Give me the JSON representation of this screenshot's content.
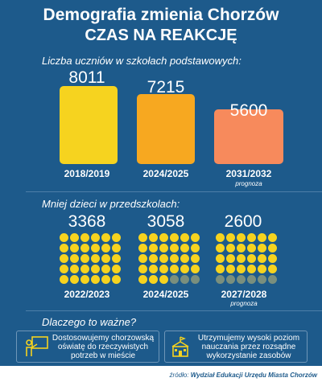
{
  "header": {
    "title": "Demografia zmienia Chorzów",
    "subtitle": "CZAS NA REAKCJĘ"
  },
  "sections": {
    "schools": "Liczba uczniów w szkołach podstawowych:",
    "preschools": "Mniej dzieci w przedszkolach:",
    "why": "Dlaczego to ważne?"
  },
  "chart_data": [
    {
      "type": "bar",
      "categories": [
        "2018/2019",
        "2024/2025",
        "2031/2032"
      ],
      "values": [
        8011,
        7215,
        5600
      ],
      "value_labels": [
        "8011",
        "7215",
        "5600"
      ],
      "notes": [
        "",
        "",
        "prognoza"
      ],
      "colors": [
        "#f6d31f",
        "#f7a820",
        "#f78a5c"
      ]
    },
    {
      "type": "bar",
      "categories": [
        "2022/2023",
        "2024/2025",
        "2027/2028"
      ],
      "values": [
        3368,
        3058,
        2600
      ],
      "value_labels": [
        "3368",
        "3058",
        "2600"
      ],
      "notes": [
        "",
        "",
        "prognoza"
      ],
      "icon_rows": [
        5,
        4.5,
        4
      ],
      "colors": {
        "face": "#f6d31f",
        "dim": "#7a8f7d"
      }
    }
  ],
  "why": {
    "item1": [
      "Dostosowujemy chorzowską",
      "oświatę do rzeczywistych",
      "potrzeb w mieście"
    ],
    "item2": [
      "Utrzymujemy wysoki poziom",
      "nauczania przez rozsądne",
      "wykorzystanie zasobów"
    ],
    "icon1": "teacher-board-icon",
    "icon2": "school-building-icon"
  },
  "source": {
    "prefix": "źródło: ",
    "text": "Wydział Edukacji Urzędu Miasta Chorzów"
  }
}
